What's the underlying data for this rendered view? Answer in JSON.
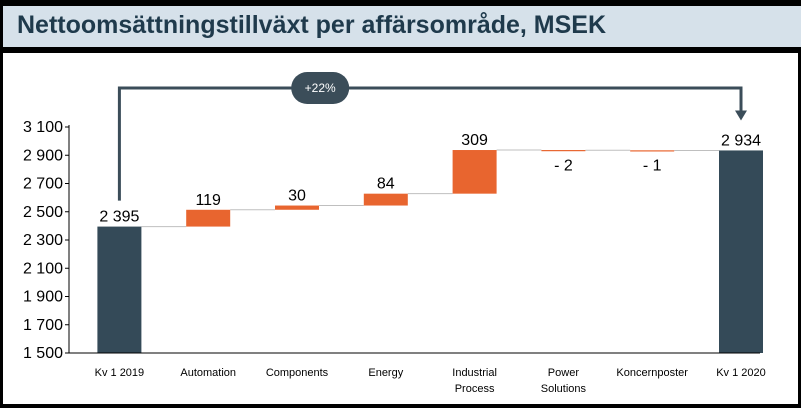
{
  "chart_data": {
    "type": "bar",
    "subtype": "waterfall",
    "title": "Nettoomsättningstillväxt per affärsområde, MSEK",
    "categories": [
      [
        "Kv 1 2019"
      ],
      [
        "Automation"
      ],
      [
        "Components"
      ],
      [
        "Energy"
      ],
      [
        "Industrial",
        "Process"
      ],
      [
        "Power",
        "Solutions"
      ],
      [
        "Koncernposter"
      ],
      [
        "Kv 1 2020"
      ]
    ],
    "values": [
      2395,
      119,
      30,
      84,
      309,
      -2,
      -1,
      2934
    ],
    "kinds": [
      "total",
      "delta",
      "delta",
      "delta",
      "delta",
      "delta",
      "delta",
      "total"
    ],
    "data_labels": [
      "2 395",
      "119",
      "30",
      "84",
      "309",
      "- 2",
      "- 1",
      "2 934"
    ],
    "ylim": [
      1500,
      3100
    ],
    "yticks": [
      1500,
      1700,
      1900,
      2100,
      2300,
      2500,
      2700,
      2900,
      3100
    ],
    "ytick_labels": [
      "1 500",
      "1 700",
      "1 900",
      "2 100",
      "2 300",
      "2 500",
      "2 700",
      "2 900",
      "3 100"
    ],
    "growth_annotation": "+22%",
    "colors": {
      "total": "#344a58",
      "delta": "#e8652f",
      "connector": "#bfbfbf",
      "bracket": "#3b4d59",
      "axis": "#000000"
    }
  }
}
